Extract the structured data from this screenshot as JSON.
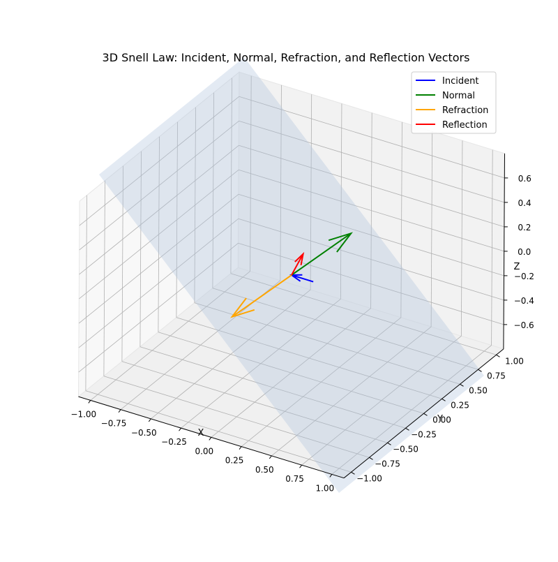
{
  "chart_data": {
    "type": "line",
    "projection": "3d",
    "title": "3D Snell Law: Incident, Normal, Refraction, and Reflection Vectors",
    "xlabel": "X",
    "ylabel": "Y",
    "zlabel": "Z",
    "xlim": [
      -1.1,
      1.1
    ],
    "ylim": [
      -1.1,
      1.1
    ],
    "zlim": [
      -0.8,
      0.8
    ],
    "x_ticks": [
      -1.0,
      -0.75,
      -0.5,
      -0.25,
      0.0,
      0.25,
      0.5,
      0.75,
      1.0
    ],
    "y_ticks": [
      -1.0,
      -0.75,
      -0.5,
      -0.25,
      0.0,
      0.25,
      0.5,
      0.75,
      1.0
    ],
    "z_ticks": [
      -0.6,
      -0.4,
      -0.2,
      0.0,
      0.2,
      0.4,
      0.6
    ],
    "x_tick_labels": [
      "−1.00",
      "−0.75",
      "−0.50",
      "−0.25",
      "0.00",
      "0.25",
      "0.50",
      "0.75",
      "1.00"
    ],
    "y_tick_labels": [
      "−1.00",
      "−0.75",
      "−0.50",
      "−0.25",
      "0.00",
      "0.25",
      "0.50",
      "0.75",
      "1.00"
    ],
    "z_tick_labels": [
      "−0.6",
      "−0.4",
      "−0.2",
      "0.0",
      "0.2",
      "0.4",
      "0.6"
    ],
    "grid": true,
    "legend_position": "top-right",
    "surface": {
      "name": "interface-plane",
      "color": "#b0c4de",
      "alpha": 0.35,
      "corners": [
        [
          -1,
          -1,
          1
        ],
        [
          1,
          -1,
          -1
        ],
        [
          1,
          1,
          -1
        ],
        [
          -1,
          1,
          1
        ]
      ]
    },
    "series": [
      {
        "name": "Incident",
        "color": "#0000ff",
        "start": [
          0.0,
          0.0,
          0.0
        ],
        "vector": [
          0.18,
          0.0,
          0.0
        ],
        "arrow_at": "start"
      },
      {
        "name": "Normal",
        "color": "#008000",
        "start": [
          0.0,
          0.0,
          0.0
        ],
        "vector": [
          0.49,
          0.0,
          0.49
        ],
        "arrow_at": "end"
      },
      {
        "name": "Refraction",
        "color": "#ffa500",
        "start": [
          0.0,
          0.0,
          0.0
        ],
        "vector": [
          -0.49,
          0.0,
          -0.49
        ],
        "arrow_at": "end"
      },
      {
        "name": "Reflection",
        "color": "#ff0000",
        "start": [
          0.0,
          0.0,
          0.0
        ],
        "vector": [
          0.22,
          -0.21,
          0.34
        ],
        "arrow_at": "end"
      }
    ]
  }
}
